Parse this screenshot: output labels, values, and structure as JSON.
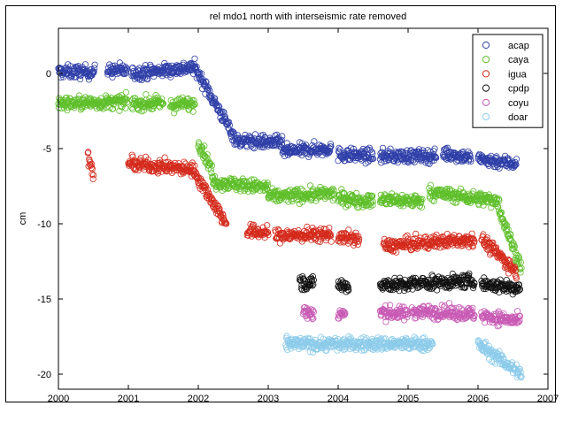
{
  "chart_data": {
    "type": "scatter",
    "title": "rel mdo1 north with interseismic rate removed",
    "xlabel": "",
    "ylabel": "cm",
    "xlim": [
      2000,
      2007
    ],
    "ylim": [
      -21,
      3
    ],
    "x_ticks": [
      "2000",
      "2001",
      "2002",
      "2003",
      "2004",
      "2005",
      "2006",
      "2007"
    ],
    "y_ticks": [
      "0",
      "-5",
      "-10",
      "-15",
      "-20"
    ],
    "legend_position": "top-right",
    "grid": false,
    "marker": "open-circle",
    "series": [
      {
        "name": "acap",
        "color": "#2f3fa8",
        "segments": [
          {
            "x": [
              2000.0,
              2000.52
            ],
            "y": [
              0.1,
              0.1
            ]
          },
          {
            "x": [
              2000.7,
              2000.98
            ],
            "y": [
              0.2,
              0.2
            ]
          },
          {
            "x": [
              2001.05,
              2001.95
            ],
            "y": [
              0.0,
              0.4
            ]
          },
          {
            "x": [
              2001.95,
              2002.55
            ],
            "y": [
              0.4,
              -4.5
            ]
          },
          {
            "x": [
              2002.55,
              2003.2
            ],
            "y": [
              -4.5,
              -4.6
            ]
          },
          {
            "x": [
              2003.2,
              2003.9
            ],
            "y": [
              -5.2,
              -5.0
            ]
          },
          {
            "x": [
              2004.0,
              2004.5
            ],
            "y": [
              -5.4,
              -5.5
            ]
          },
          {
            "x": [
              2004.6,
              2005.4
            ],
            "y": [
              -5.5,
              -5.5
            ]
          },
          {
            "x": [
              2005.5,
              2005.9
            ],
            "y": [
              -5.3,
              -5.6
            ]
          },
          {
            "x": [
              2006.0,
              2006.55
            ],
            "y": [
              -5.7,
              -6.0
            ]
          }
        ]
      },
      {
        "name": "caya",
        "color": "#5fbf2a",
        "segments": [
          {
            "x": [
              2000.0,
              2000.98
            ],
            "y": [
              -2.0,
              -1.9
            ]
          },
          {
            "x": [
              2001.05,
              2001.5
            ],
            "y": [
              -2.0,
              -2.0
            ]
          },
          {
            "x": [
              2001.6,
              2001.95
            ],
            "y": [
              -2.1,
              -2.0
            ]
          },
          {
            "x": [
              2002.0,
              2002.2
            ],
            "y": [
              -4.5,
              -6.5
            ]
          },
          {
            "x": [
              2002.2,
              2003.0
            ],
            "y": [
              -7.2,
              -7.6
            ]
          },
          {
            "x": [
              2003.0,
              2003.95
            ],
            "y": [
              -8.2,
              -8.0
            ]
          },
          {
            "x": [
              2004.0,
              2004.5
            ],
            "y": [
              -8.3,
              -8.5
            ]
          },
          {
            "x": [
              2004.6,
              2005.2
            ],
            "y": [
              -8.4,
              -8.5
            ]
          },
          {
            "x": [
              2005.3,
              2006.3
            ],
            "y": [
              -7.9,
              -8.5
            ]
          },
          {
            "x": [
              2006.3,
              2006.62
            ],
            "y": [
              -9.0,
              -13.0
            ]
          }
        ]
      },
      {
        "name": "igua",
        "color": "#d42a1c",
        "segments": [
          {
            "x": [
              2000.42,
              2000.5
            ],
            "y": [
              -5.5,
              -6.8
            ]
          },
          {
            "x": [
              2001.0,
              2001.95
            ],
            "y": [
              -6.0,
              -6.4
            ]
          },
          {
            "x": [
              2001.95,
              2002.4
            ],
            "y": [
              -6.6,
              -10.0
            ]
          },
          {
            "x": [
              2002.7,
              2003.0
            ],
            "y": [
              -10.5,
              -10.6
            ]
          },
          {
            "x": [
              2003.1,
              2003.9
            ],
            "y": [
              -10.8,
              -10.7
            ]
          },
          {
            "x": [
              2004.0,
              2004.3
            ],
            "y": [
              -10.9,
              -11.0
            ]
          },
          {
            "x": [
              2004.65,
              2005.95
            ],
            "y": [
              -11.5,
              -11.0
            ]
          },
          {
            "x": [
              2006.05,
              2006.55
            ],
            "y": [
              -11.0,
              -13.2
            ]
          }
        ]
      },
      {
        "name": "cpdp",
        "color": "#111111",
        "segments": [
          {
            "x": [
              2003.45,
              2003.65
            ],
            "y": [
              -13.9,
              -14.0
            ]
          },
          {
            "x": [
              2004.0,
              2004.15
            ],
            "y": [
              -14.0,
              -14.2
            ]
          },
          {
            "x": [
              2004.6,
              2005.0
            ],
            "y": [
              -14.0,
              -14.1
            ]
          },
          {
            "x": [
              2005.0,
              2005.95
            ],
            "y": [
              -14.0,
              -13.8
            ]
          },
          {
            "x": [
              2006.05,
              2006.6
            ],
            "y": [
              -14.0,
              -14.3
            ]
          }
        ]
      },
      {
        "name": "coyu",
        "color": "#c85ab4",
        "segments": [
          {
            "x": [
              2003.5,
              2003.65
            ],
            "y": [
              -15.8,
              -16.0
            ]
          },
          {
            "x": [
              2004.0,
              2004.1
            ],
            "y": [
              -16.0,
              -16.0
            ]
          },
          {
            "x": [
              2004.6,
              2005.0
            ],
            "y": [
              -15.9,
              -16.0
            ]
          },
          {
            "x": [
              2005.05,
              2005.95
            ],
            "y": [
              -15.8,
              -16.0
            ]
          },
          {
            "x": [
              2006.05,
              2006.6
            ],
            "y": [
              -16.1,
              -16.5
            ]
          }
        ]
      },
      {
        "name": "doar",
        "color": "#8ccbea",
        "segments": [
          {
            "x": [
              2003.25,
              2005.35
            ],
            "y": [
              -18.0,
              -18.0
            ]
          },
          {
            "x": [
              2006.0,
              2006.62
            ],
            "y": [
              -18.0,
              -20.0
            ]
          }
        ]
      }
    ]
  }
}
